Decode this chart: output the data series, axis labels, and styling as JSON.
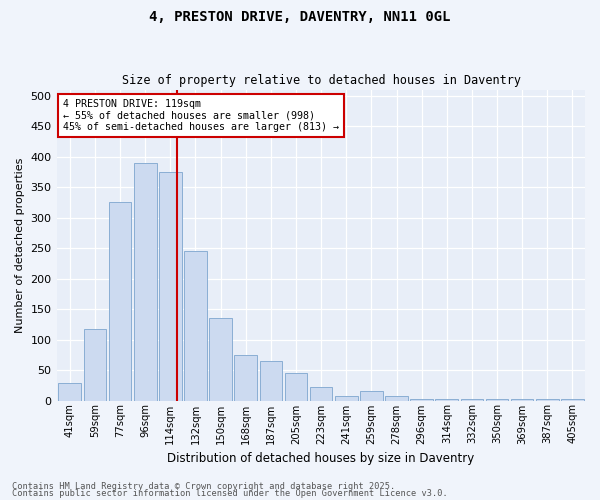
{
  "title1": "4, PRESTON DRIVE, DAVENTRY, NN11 0GL",
  "title2": "Size of property relative to detached houses in Daventry",
  "xlabel": "Distribution of detached houses by size in Daventry",
  "ylabel": "Number of detached properties",
  "bar_labels": [
    "41sqm",
    "59sqm",
    "77sqm",
    "96sqm",
    "114sqm",
    "132sqm",
    "150sqm",
    "168sqm",
    "187sqm",
    "205sqm",
    "223sqm",
    "241sqm",
    "259sqm",
    "278sqm",
    "296sqm",
    "314sqm",
    "332sqm",
    "350sqm",
    "369sqm",
    "387sqm",
    "405sqm"
  ],
  "bar_values": [
    28,
    118,
    325,
    390,
    375,
    245,
    135,
    75,
    65,
    45,
    22,
    8,
    15,
    8,
    3,
    3,
    3,
    3,
    3,
    3,
    2
  ],
  "bar_color": "#ccdaf0",
  "bar_edge_color": "#8aaed4",
  "vline_x_index": 4.28,
  "vline_color": "#cc0000",
  "annotation_text": "4 PRESTON DRIVE: 119sqm\n← 55% of detached houses are smaller (998)\n45% of semi-detached houses are larger (813) →",
  "annotation_box_color": "#cc0000",
  "ylim": [
    0,
    510
  ],
  "yticks": [
    0,
    50,
    100,
    150,
    200,
    250,
    300,
    350,
    400,
    450,
    500
  ],
  "bg_color": "#e8eef8",
  "fig_bg_color": "#f0f4fb",
  "footnote1": "Contains HM Land Registry data © Crown copyright and database right 2025.",
  "footnote2": "Contains public sector information licensed under the Open Government Licence v3.0."
}
